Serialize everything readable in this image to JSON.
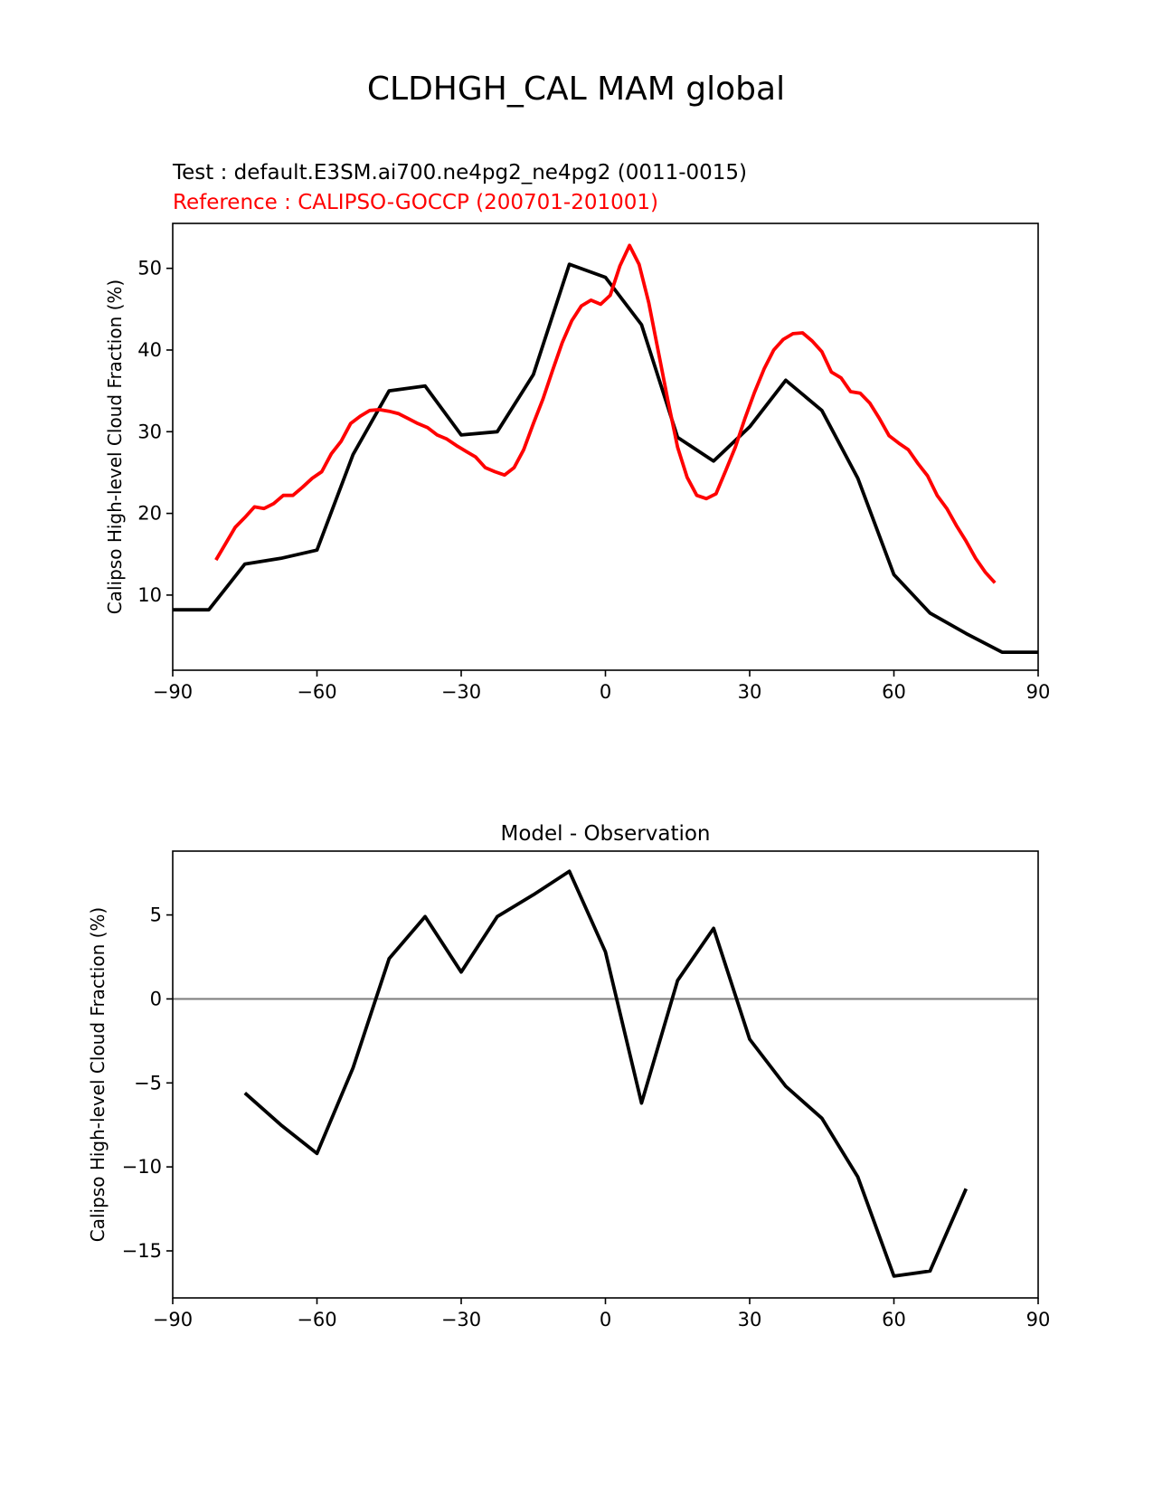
{
  "figure": {
    "suptitle": "CLDHGH_CAL MAM global",
    "test_label": "Test : default.E3SM.ai700.ne4pg2_ne4pg2 (0011-0015)",
    "reference_label": "Reference : CALIPSO-GOCCP (200701-201001)"
  },
  "colors": {
    "test": "#000000",
    "reference": "#ff0000",
    "zero_line": "#808080",
    "axes": "#000000"
  },
  "chart_data": [
    {
      "type": "line",
      "title": "",
      "xlabel": "",
      "ylabel": "Calipso High-level Cloud Fraction (%)",
      "xlim": [
        -90,
        90
      ],
      "ylim": [
        0.8,
        55.5
      ],
      "xticks": [
        -90,
        -60,
        -30,
        0,
        30,
        60,
        90
      ],
      "xtick_labels": [
        "−90",
        "−60",
        "−30",
        "0",
        "30",
        "60",
        "90"
      ],
      "yticks": [
        10,
        20,
        30,
        40,
        50
      ],
      "ytick_labels": [
        "10",
        "20",
        "30",
        "40",
        "50"
      ],
      "series": [
        {
          "role": "test",
          "x": [
            -90,
            -82.5,
            -75,
            -67.5,
            -60,
            -52.5,
            -45,
            -37.5,
            -30,
            -22.5,
            -15,
            -7.5,
            0,
            7.5,
            15,
            22.5,
            30,
            37.5,
            45,
            52.5,
            60,
            67.5,
            75,
            82.5,
            90
          ],
          "y": [
            8.2,
            8.2,
            13.8,
            14.5,
            15.5,
            27.2,
            35.0,
            35.6,
            29.6,
            30.0,
            37.0,
            50.5,
            48.9,
            43.1,
            29.3,
            26.4,
            30.6,
            36.3,
            32.6,
            24.3,
            12.5,
            7.8,
            5.3,
            3.0,
            3.0
          ]
        },
        {
          "role": "reference",
          "x": [
            -81,
            -79,
            -77,
            -75,
            -73,
            -71,
            -69,
            -67,
            -65,
            -63,
            -61,
            -59,
            -57,
            -55,
            -53,
            -51,
            -49,
            -47,
            -45,
            -43,
            -41,
            -39,
            -37,
            -35,
            -33,
            -31,
            -29,
            -27,
            -25,
            -23,
            -21,
            -19,
            -17,
            -15,
            -13,
            -11,
            -9,
            -7,
            -5,
            -3,
            -1,
            1,
            3,
            5,
            7,
            9,
            11,
            13,
            15,
            17,
            19,
            21,
            23,
            25,
            27,
            29,
            31,
            33,
            35,
            37,
            39,
            41,
            43,
            45,
            47,
            49,
            51,
            53,
            55,
            57,
            59,
            61,
            63,
            65,
            67,
            69,
            71,
            73,
            75,
            77,
            79,
            81
          ],
          "y": [
            14.3,
            16.3,
            18.3,
            19.5,
            20.8,
            20.6,
            21.2,
            22.2,
            22.2,
            23.2,
            24.3,
            25.1,
            27.3,
            28.8,
            31.0,
            31.9,
            32.6,
            32.7,
            32.5,
            32.2,
            31.6,
            31.0,
            30.5,
            29.6,
            29.1,
            28.3,
            27.6,
            26.9,
            25.6,
            25.1,
            24.7,
            25.6,
            27.8,
            31.0,
            34.0,
            37.5,
            40.9,
            43.6,
            45.4,
            46.1,
            45.6,
            46.7,
            50.3,
            52.8,
            50.5,
            45.8,
            39.8,
            33.8,
            28.1,
            24.4,
            22.2,
            21.8,
            22.4,
            25.2,
            28.1,
            31.6,
            34.8,
            37.7,
            40.0,
            41.3,
            42.0,
            42.1,
            41.1,
            39.8,
            37.3,
            36.6,
            34.9,
            34.7,
            33.5,
            31.6,
            29.5,
            28.6,
            27.8,
            26.1,
            24.6,
            22.2,
            20.6,
            18.5,
            16.6,
            14.5,
            12.8,
            11.5
          ]
        }
      ]
    },
    {
      "type": "line",
      "title": "Model - Observation",
      "xlabel": "",
      "ylabel": "Calipso High-level Cloud Fraction (%)",
      "xlim": [
        -90,
        90
      ],
      "ylim": [
        -17.8,
        8.8
      ],
      "xticks": [
        -90,
        -60,
        -30,
        0,
        30,
        60,
        90
      ],
      "xtick_labels": [
        "−90",
        "−60",
        "−30",
        "0",
        "30",
        "60",
        "90"
      ],
      "yticks": [
        5,
        0,
        -5,
        -10,
        -15
      ],
      "ytick_labels": [
        "5",
        "0",
        "−5",
        "−10",
        "−15"
      ],
      "zero_line": true,
      "series": [
        {
          "role": "difference",
          "x": [
            -75,
            -67.5,
            -60,
            -52.5,
            -45,
            -37.5,
            -30,
            -22.5,
            -15,
            -7.5,
            0,
            7.5,
            15,
            22.5,
            30,
            37.5,
            45,
            52.5,
            60,
            67.5,
            75
          ],
          "y": [
            -5.6,
            -7.5,
            -9.2,
            -4.1,
            2.4,
            4.9,
            1.6,
            4.9,
            6.2,
            7.6,
            2.8,
            -6.2,
            1.1,
            4.2,
            -2.4,
            -5.2,
            -7.1,
            -10.6,
            -16.5,
            -16.2,
            -11.3
          ]
        }
      ]
    }
  ]
}
